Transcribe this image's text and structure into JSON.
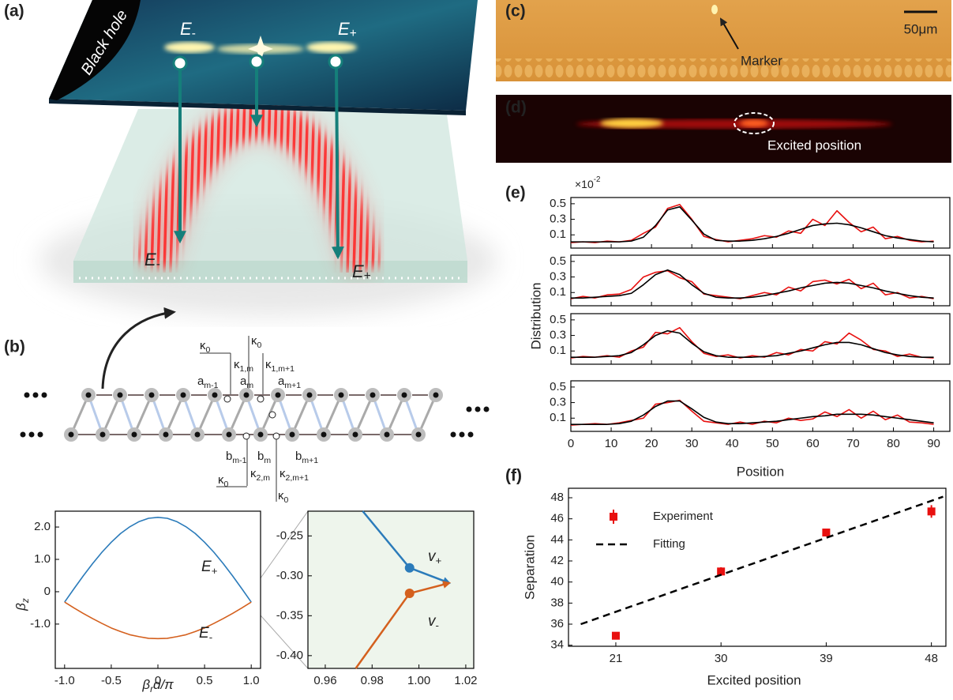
{
  "panel_labels": [
    "(a)",
    "(b)",
    "(c)",
    "(d)",
    "(e)",
    "(f)"
  ],
  "illustration": {
    "black_hole": "Black hole",
    "source_labels": [
      "E-",
      "E+"
    ],
    "lattice_labels": [
      "E-",
      "E+"
    ]
  },
  "lattice": {
    "labels": [
      {
        "t": "κ",
        "s": "0"
      },
      {
        "t": "κ",
        "s": "1,m"
      },
      {
        "t": "κ",
        "s": "0"
      },
      {
        "t": "κ",
        "s": "1,m+1"
      },
      {
        "t": "a",
        "s": "m-1"
      },
      {
        "t": "a",
        "s": "m"
      },
      {
        "t": "a",
        "s": "m+1"
      },
      {
        "t": "b",
        "s": "m-1"
      },
      {
        "t": "b",
        "s": "m"
      },
      {
        "t": "b",
        "s": "m+1"
      },
      {
        "t": "κ",
        "s": "0"
      },
      {
        "t": "κ",
        "s": "2,m"
      },
      {
        "t": "κ",
        "s": "2,m+1"
      },
      {
        "t": "κ",
        "s": "0"
      }
    ]
  },
  "micrograph": {
    "marker": "Marker",
    "scale_bar": "50μm"
  },
  "fluorescence": {
    "annotation": "Excited position"
  },
  "chart_data": [
    {
      "type": "line",
      "x": [
        -1,
        -0.9,
        -0.8,
        -0.7,
        -0.6,
        -0.5,
        -0.4,
        -0.3,
        -0.2,
        -0.1,
        0,
        0.1,
        0.2,
        0.3,
        0.4,
        0.5,
        0.6,
        0.7,
        0.8,
        0.9,
        1
      ],
      "series": [
        {
          "name": "E+",
          "color": "#2b7bba",
          "values": [
            -0.32,
            0.09,
            0.49,
            0.87,
            1.22,
            1.53,
            1.8,
            2.01,
            2.17,
            2.27,
            2.3,
            2.27,
            2.17,
            2.01,
            1.8,
            1.53,
            1.22,
            0.87,
            0.49,
            0.09,
            -0.32
          ]
        },
        {
          "name": "E-",
          "color": "#d4601e",
          "values": [
            -0.32,
            -0.5,
            -0.67,
            -0.83,
            -0.98,
            -1.12,
            -1.23,
            -1.33,
            -1.39,
            -1.44,
            -1.45,
            -1.44,
            -1.39,
            -1.33,
            -1.23,
            -1.12,
            -0.98,
            -0.83,
            -0.67,
            -0.5,
            -0.32
          ]
        }
      ],
      "xlim": [
        -1.1,
        1.1
      ],
      "ylim": [
        -2.37,
        2.49
      ],
      "xticks": [
        {
          "value": -1,
          "label": "-1.0"
        },
        -0.5,
        0,
        0.5,
        {
          "value": 1,
          "label": "1.0"
        }
      ],
      "yticks": [
        {
          "value": 2,
          "label": "2.0"
        },
        {
          "value": 1,
          "label": "1.0"
        },
        0,
        {
          "value": -1,
          "label": "-1.0"
        }
      ],
      "xlabel": {
        "t": "β",
        "s": "r",
        "tail": "d/π"
      },
      "ylabel": {
        "t": "β",
        "s": "z"
      }
    },
    {
      "type": "line",
      "background": "#eef5ec",
      "arrows": true,
      "series": [
        {
          "name": "v+",
          "color": "#2b7bba",
          "x": [
            0.976,
            0.996,
            1.013
          ],
          "values": [
            -0.219,
            -0.29,
            -0.309
          ]
        },
        {
          "name": "v-",
          "color": "#d4601e",
          "x": [
            0.973,
            0.996,
            1.013
          ],
          "values": [
            -0.416,
            -0.322,
            -0.309
          ]
        }
      ],
      "xlim": [
        0.9526,
        1.0234
      ],
      "ylim": [
        -0.416,
        -0.219
      ],
      "xticks": [
        0.96,
        0.98,
        {
          "value": 1,
          "label": "1.00"
        },
        1.02
      ],
      "yticks": [
        -0.25,
        {
          "value": -0.3,
          "label": "-0.30"
        },
        -0.35,
        {
          "value": -0.4,
          "label": "-0.40"
        }
      ]
    },
    {
      "type": "line",
      "ylabel": "Distribution",
      "multiplier": {
        "t": "×10",
        "sup": "-2"
      },
      "xtick_labels": false,
      "x": [
        0,
        3,
        6,
        9,
        12,
        15,
        18,
        21,
        24,
        27,
        30,
        33,
        36,
        39,
        42,
        45,
        48,
        51,
        54,
        57,
        60,
        63,
        66,
        69,
        72,
        75,
        78,
        81,
        84,
        87,
        90
      ],
      "series": [
        {
          "color": "#e8100f",
          "values": [
            0.0,
            0.01,
            0.0,
            0.02,
            0.01,
            0.03,
            0.12,
            0.2,
            0.44,
            0.49,
            0.3,
            0.08,
            0.04,
            0.01,
            0.03,
            0.05,
            0.09,
            0.07,
            0.15,
            0.12,
            0.3,
            0.22,
            0.41,
            0.26,
            0.14,
            0.2,
            0.05,
            0.08,
            0.03,
            0.01,
            0.02
          ]
        },
        {
          "color": "#000000",
          "values": [
            0.01,
            0.01,
            0.01,
            0.01,
            0.01,
            0.02,
            0.07,
            0.22,
            0.42,
            0.46,
            0.29,
            0.11,
            0.03,
            0.02,
            0.02,
            0.03,
            0.05,
            0.08,
            0.12,
            0.17,
            0.22,
            0.24,
            0.25,
            0.23,
            0.19,
            0.14,
            0.09,
            0.06,
            0.04,
            0.02,
            0.01
          ]
        }
      ],
      "xlim": [
        0,
        94
      ],
      "ylim": [
        -0.07,
        0.58
      ],
      "xticks": [
        0,
        10,
        20,
        30,
        40,
        50,
        60,
        70,
        80,
        90
      ],
      "yticks": [
        0.1,
        0.3,
        0.5
      ]
    },
    {
      "type": "line",
      "xtick_labels": false,
      "x": [
        0,
        3,
        6,
        9,
        12,
        15,
        18,
        21,
        24,
        27,
        30,
        33,
        36,
        39,
        42,
        45,
        48,
        51,
        54,
        57,
        60,
        63,
        66,
        69,
        72,
        75,
        78,
        81,
        84,
        87,
        90
      ],
      "series": [
        {
          "color": "#e8100f",
          "values": [
            0.02,
            0.05,
            0.03,
            0.07,
            0.08,
            0.14,
            0.3,
            0.36,
            0.38,
            0.29,
            0.24,
            0.08,
            0.06,
            0.04,
            0.02,
            0.06,
            0.1,
            0.07,
            0.17,
            0.12,
            0.24,
            0.26,
            0.21,
            0.27,
            0.15,
            0.22,
            0.07,
            0.1,
            0.03,
            0.05,
            0.02
          ]
        },
        {
          "color": "#000000",
          "values": [
            0.03,
            0.03,
            0.04,
            0.05,
            0.06,
            0.09,
            0.2,
            0.33,
            0.39,
            0.33,
            0.2,
            0.09,
            0.04,
            0.03,
            0.03,
            0.04,
            0.06,
            0.09,
            0.12,
            0.16,
            0.19,
            0.22,
            0.23,
            0.22,
            0.19,
            0.16,
            0.12,
            0.09,
            0.06,
            0.04,
            0.03
          ]
        }
      ],
      "xlim": [
        0,
        94
      ],
      "ylim": [
        -0.07,
        0.58
      ],
      "xticks": [
        0,
        10,
        20,
        30,
        40,
        50,
        60,
        70,
        80,
        90
      ],
      "yticks": [
        0.1,
        0.3,
        0.5
      ]
    },
    {
      "type": "line",
      "xtick_labels": false,
      "x": [
        0,
        3,
        6,
        9,
        12,
        15,
        18,
        21,
        24,
        27,
        30,
        33,
        36,
        39,
        42,
        45,
        48,
        51,
        54,
        57,
        60,
        63,
        66,
        69,
        72,
        75,
        78,
        81,
        84,
        87,
        90
      ],
      "series": [
        {
          "color": "#e8100f",
          "values": [
            0.01,
            0.03,
            0.02,
            0.04,
            0.02,
            0.1,
            0.15,
            0.34,
            0.32,
            0.4,
            0.22,
            0.07,
            0.03,
            0.05,
            0.01,
            0.04,
            0.02,
            0.08,
            0.05,
            0.12,
            0.1,
            0.22,
            0.19,
            0.33,
            0.24,
            0.12,
            0.1,
            0.03,
            0.06,
            0.02,
            0.01
          ]
        },
        {
          "color": "#000000",
          "values": [
            0.02,
            0.02,
            0.02,
            0.03,
            0.04,
            0.08,
            0.18,
            0.3,
            0.36,
            0.33,
            0.2,
            0.09,
            0.04,
            0.02,
            0.02,
            0.02,
            0.03,
            0.04,
            0.07,
            0.1,
            0.14,
            0.18,
            0.21,
            0.21,
            0.18,
            0.13,
            0.08,
            0.05,
            0.03,
            0.02,
            0.02
          ]
        }
      ],
      "xlim": [
        0,
        94
      ],
      "ylim": [
        -0.07,
        0.58
      ],
      "xticks": [
        0,
        10,
        20,
        30,
        40,
        50,
        60,
        70,
        80,
        90
      ],
      "yticks": [
        0.1,
        0.3,
        0.5
      ]
    },
    {
      "type": "line",
      "xlabel": "Position",
      "x": [
        0,
        3,
        6,
        9,
        12,
        15,
        18,
        21,
        24,
        27,
        30,
        33,
        36,
        39,
        42,
        45,
        48,
        51,
        54,
        57,
        60,
        63,
        66,
        69,
        72,
        75,
        78,
        81,
        84,
        87,
        90
      ],
      "series": [
        {
          "color": "#e8100f",
          "values": [
            0.01,
            0.02,
            0.03,
            0.02,
            0.04,
            0.07,
            0.1,
            0.28,
            0.3,
            0.33,
            0.19,
            0.06,
            0.04,
            0.02,
            0.05,
            0.02,
            0.06,
            0.04,
            0.1,
            0.07,
            0.09,
            0.18,
            0.12,
            0.21,
            0.1,
            0.19,
            0.08,
            0.14,
            0.05,
            0.04,
            0.02
          ]
        },
        {
          "color": "#000000",
          "values": [
            0.02,
            0.02,
            0.02,
            0.02,
            0.03,
            0.06,
            0.14,
            0.25,
            0.32,
            0.32,
            0.22,
            0.11,
            0.05,
            0.03,
            0.03,
            0.04,
            0.05,
            0.06,
            0.08,
            0.1,
            0.12,
            0.13,
            0.15,
            0.15,
            0.15,
            0.14,
            0.12,
            0.1,
            0.08,
            0.06,
            0.04
          ]
        }
      ],
      "xlim": [
        0,
        94
      ],
      "ylim": [
        -0.07,
        0.58
      ],
      "xticks": [
        0,
        10,
        20,
        30,
        40,
        50,
        60,
        70,
        80,
        90
      ],
      "yticks": [
        0.1,
        0.3,
        0.5
      ]
    },
    {
      "type": "scatter",
      "legend": "upper left",
      "series": [
        {
          "name": "Experiment",
          "color": "#e8100f",
          "x": [
            21,
            30,
            39,
            48
          ],
          "values": [
            34.9,
            41.0,
            44.7,
            46.7
          ],
          "errors": [
            0.3,
            0.4,
            0.3,
            0.6
          ]
        },
        {
          "name": "Fitting",
          "color": "#000000",
          "line": "dashed",
          "x": [
            18,
            49
          ],
          "values": [
            36.0,
            48.1
          ]
        }
      ],
      "xlim": [
        16.95,
        49.24
      ],
      "ylim": [
        33.9,
        48.9
      ],
      "xticks": [
        21,
        30,
        39,
        48
      ],
      "yticks": [
        34,
        36,
        38,
        40,
        42,
        44,
        46,
        48
      ],
      "xlabel": "Excited position",
      "ylabel": "Separation"
    }
  ]
}
